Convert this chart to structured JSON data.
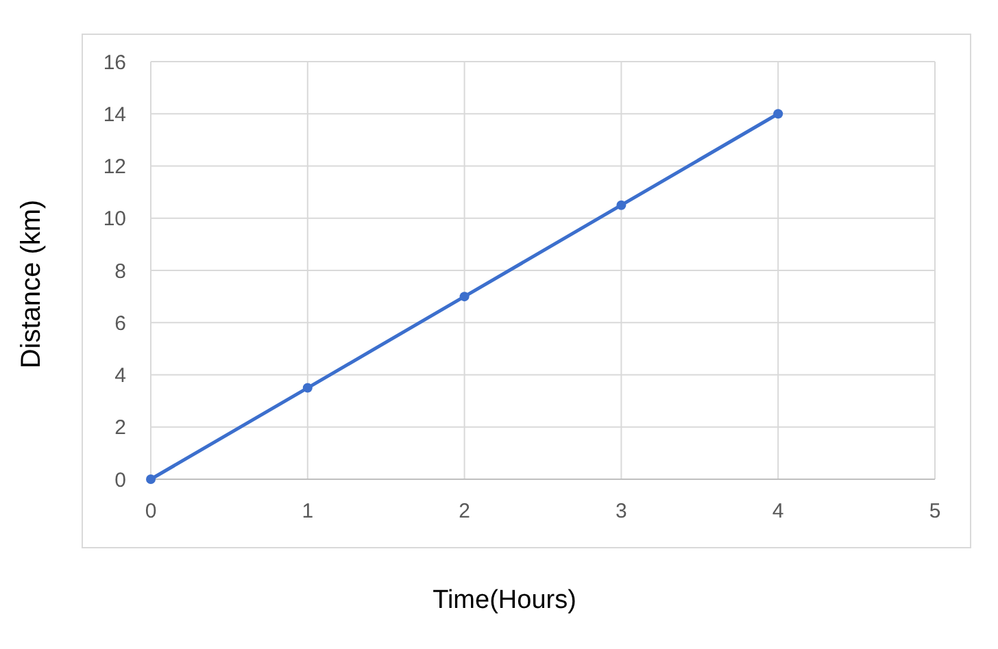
{
  "chart_data": {
    "type": "line",
    "xlabel": "Time(Hours)",
    "ylabel": "Distance (km)",
    "x": [
      0,
      1,
      2,
      3,
      4
    ],
    "series": [
      {
        "color": "#3c6fcd",
        "values": [
          0,
          3.5,
          7,
          10.5,
          14
        ]
      }
    ],
    "xlim": [
      0,
      5
    ],
    "xticks": [
      0,
      1,
      2,
      3,
      4,
      5
    ],
    "ylim": [
      0,
      16
    ],
    "yticks": [
      0,
      2,
      4,
      6,
      8,
      10,
      12,
      14,
      16
    ],
    "grid": true,
    "marker": "circle",
    "line_style": "solid"
  }
}
